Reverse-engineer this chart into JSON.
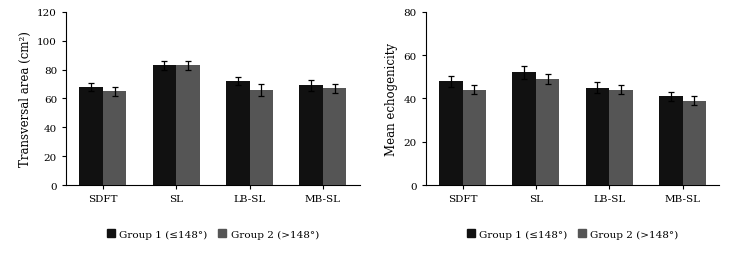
{
  "categories": [
    "SDFT",
    "SL",
    "LB-SL",
    "MB-SL"
  ],
  "chart1": {
    "ylabel": "Transversal area (cm²)",
    "ylim": [
      0,
      120
    ],
    "yticks": [
      0,
      20,
      40,
      60,
      80,
      100,
      120
    ],
    "group1_values": [
      68,
      83,
      72,
      69
    ],
    "group2_values": [
      65,
      83,
      66,
      67
    ],
    "group1_errors": [
      3,
      3,
      3,
      4
    ],
    "group2_errors": [
      3,
      3,
      4,
      3
    ]
  },
  "chart2": {
    "ylabel": "Mean echogenicity",
    "ylim": [
      0,
      80
    ],
    "yticks": [
      0,
      20,
      40,
      60,
      80
    ],
    "group1_values": [
      48,
      52,
      45,
      41
    ],
    "group2_values": [
      44,
      49,
      44,
      39
    ],
    "group1_errors": [
      2.5,
      3,
      2.5,
      2
    ],
    "group2_errors": [
      2,
      2.5,
      2,
      2
    ]
  },
  "group1_color": "#111111",
  "group2_color": "#555555",
  "group1_label": "Group 1 (≤148°)",
  "group2_label": "Group 2 (>148°)",
  "bar_width": 0.32,
  "legend_fontsize": 7.5,
  "tick_fontsize": 7.5,
  "label_fontsize": 8.5,
  "background_color": "#ffffff"
}
